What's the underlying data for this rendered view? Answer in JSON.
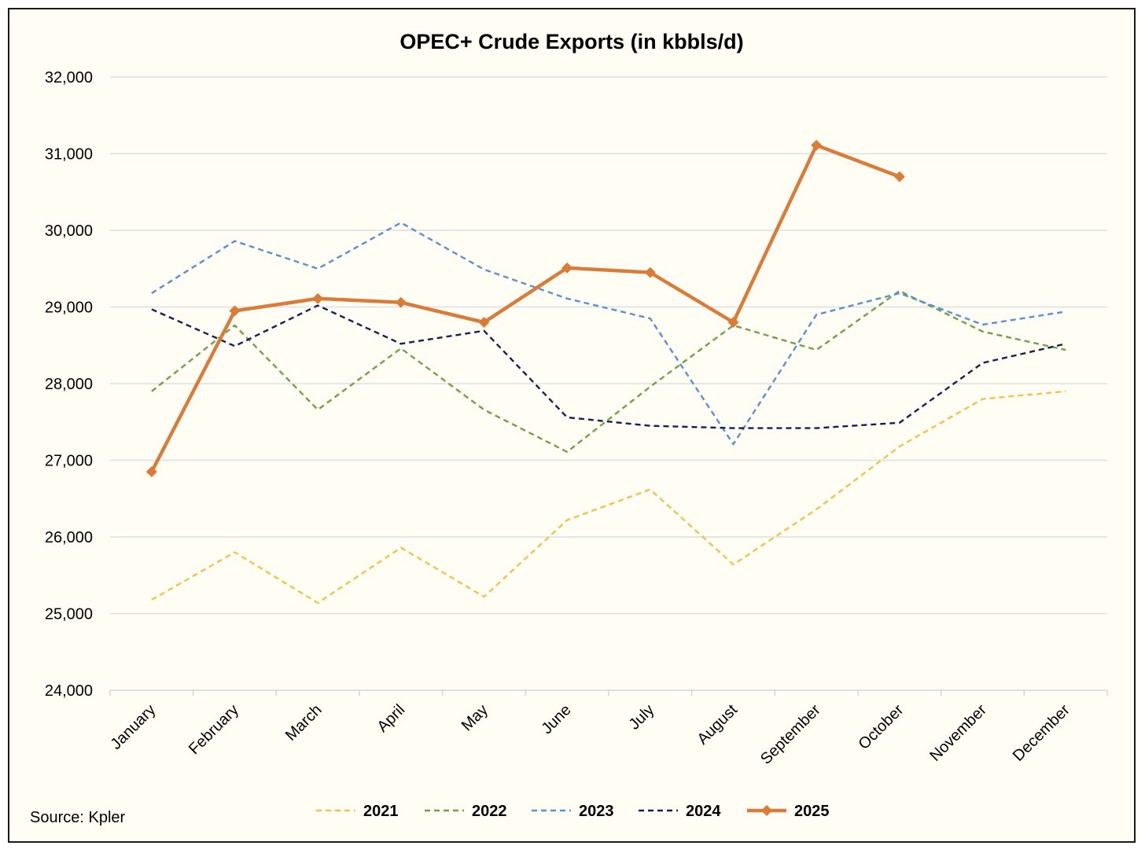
{
  "chart_data": {
    "type": "line",
    "title": "OPEC+ Crude Exports (in kbbls/d)",
    "source": "Source: Kpler",
    "ylim": [
      24000,
      32000
    ],
    "yticks": [
      "24,000",
      "25,000",
      "26,000",
      "27,000",
      "28,000",
      "29,000",
      "30,000",
      "31,000",
      "32,000"
    ],
    "ytick_values": [
      24000,
      25000,
      26000,
      27000,
      28000,
      29000,
      30000,
      31000,
      32000
    ],
    "grid": true,
    "legend_position": "bottom",
    "categories": [
      "January",
      "February",
      "March",
      "April",
      "May",
      "June",
      "July",
      "August",
      "September",
      "October",
      "November",
      "December"
    ],
    "series": [
      {
        "name": "2021",
        "color": "#f2c14e",
        "style": "dashed",
        "marker": "none",
        "values": [
          25180,
          25800,
          25140,
          25860,
          25220,
          26220,
          26620,
          25640,
          26360,
          27180,
          27800,
          27900
        ]
      },
      {
        "name": "2022",
        "color": "#70a14a",
        "style": "dashed",
        "marker": "none",
        "values": [
          27900,
          28760,
          27660,
          28460,
          27660,
          27110,
          27960,
          28760,
          28440,
          29210,
          28680,
          28440
        ]
      },
      {
        "name": "2023",
        "color": "#5b90cf",
        "style": "dashed",
        "marker": "none",
        "values": [
          29180,
          29860,
          29500,
          30100,
          29490,
          29110,
          28850,
          27210,
          28900,
          29180,
          28770,
          28940
        ]
      },
      {
        "name": "2024",
        "color": "#13224f",
        "style": "dashed",
        "marker": "none",
        "values": [
          28970,
          28490,
          29020,
          28520,
          28690,
          27560,
          27450,
          27420,
          27420,
          27490,
          28270,
          28520
        ]
      },
      {
        "name": "2025",
        "color": "#d97c3a",
        "style": "solid",
        "marker": "diamond",
        "values": [
          26850,
          28950,
          29110,
          29060,
          28800,
          29510,
          29450,
          28800,
          31110,
          30700,
          null,
          null
        ]
      }
    ]
  }
}
